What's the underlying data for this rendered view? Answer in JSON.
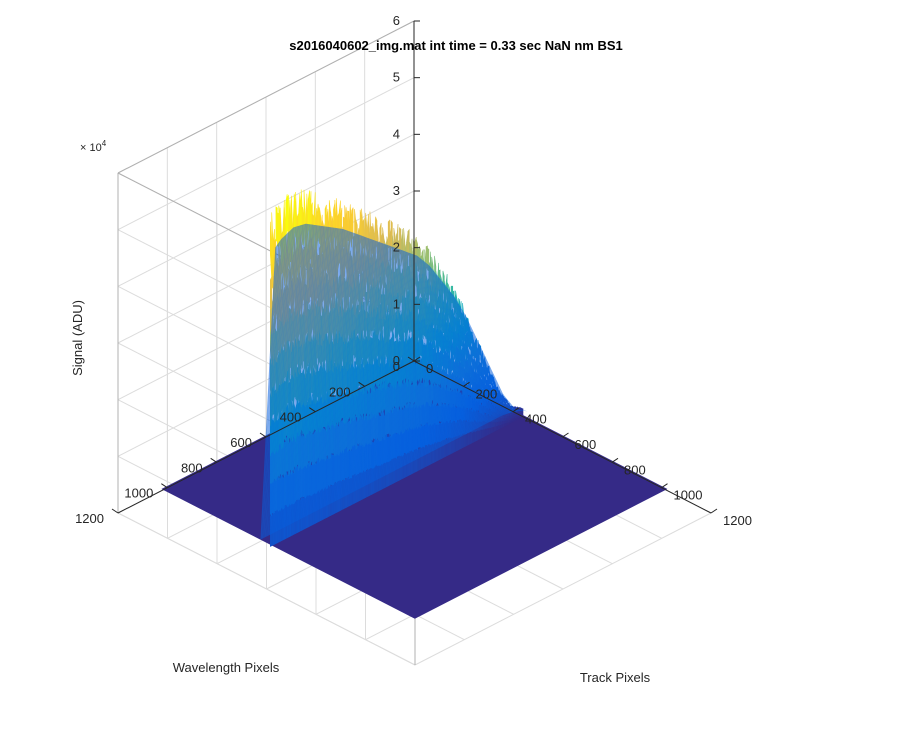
{
  "chart_data": {
    "type": "surface",
    "title": "s2016040602_img.mat int time = 0.33 sec  NaN nm BS1",
    "xlabel": "Track Pixels",
    "ylabel": "Wavelength Pixels",
    "zlabel": "Signal (ADU)",
    "z_exponent_label": "× 10",
    "z_exponent_power": "4",
    "xlim": [
      0,
      1200
    ],
    "ylim": [
      0,
      1200
    ],
    "zlim": [
      0,
      60000
    ],
    "x_ticks": [
      "0",
      "200",
      "400",
      "600",
      "800",
      "1000",
      "1200"
    ],
    "y_ticks": [
      "0",
      "200",
      "400",
      "600",
      "800",
      "1000",
      "1200"
    ],
    "z_ticks": [
      "0",
      "1",
      "2",
      "3",
      "4",
      "5",
      "6"
    ],
    "grid": true,
    "colormap": "parula",
    "surface_extent": {
      "x": [
        0,
        1024
      ],
      "y": [
        0,
        1024
      ]
    },
    "signal_band_x": [
      400,
      600
    ],
    "signal_profile": {
      "wavelength_pixel": [
        0,
        50,
        100,
        150,
        200,
        250,
        300,
        350,
        400,
        450,
        500,
        550,
        600,
        650,
        700,
        750,
        800,
        850,
        900,
        950,
        1000,
        1024
      ],
      "peak_signal": [
        1500,
        3000,
        7000,
        13000,
        19000,
        25000,
        30000,
        34000,
        38000,
        41000,
        43000,
        45000,
        47000,
        49000,
        51000,
        53000,
        54500,
        56000,
        57500,
        58000,
        57000,
        56000
      ]
    },
    "background_signal": 300
  }
}
